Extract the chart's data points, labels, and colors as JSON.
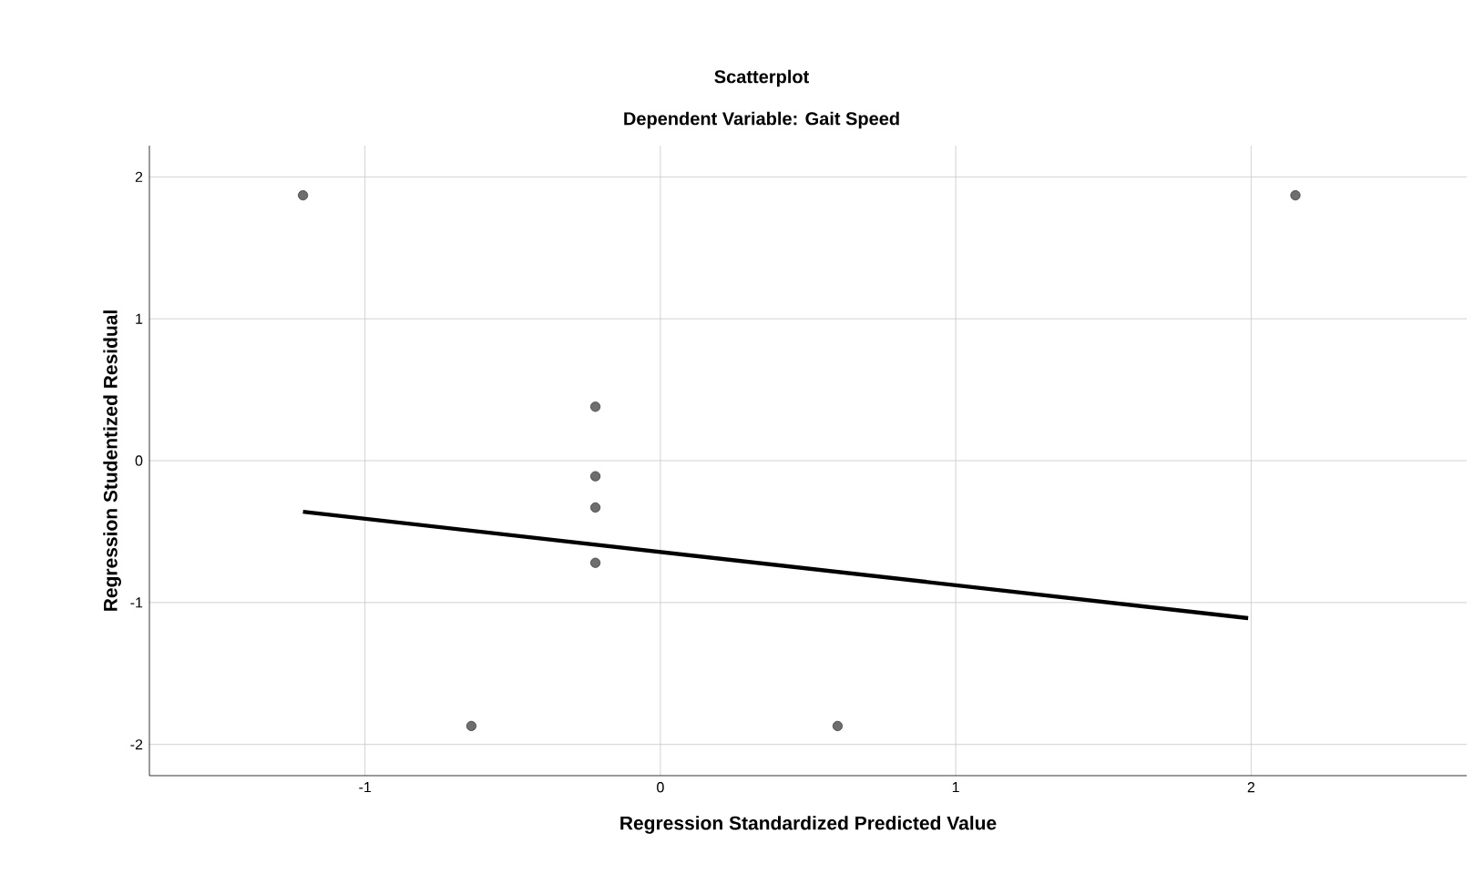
{
  "chart_data": {
    "type": "scatter",
    "title": "Scatterplot",
    "subtitle": "Dependent Variable: Gait Speed",
    "xlabel": "Regression Standardized Predicted Value",
    "ylabel": "Regression Studentized Residual",
    "xlim": [
      -1.73,
      2.73
    ],
    "ylim": [
      -2.22,
      2.22
    ],
    "xticks": [
      -1,
      0,
      1,
      2
    ],
    "yticks": [
      -2,
      -1,
      0,
      1,
      2
    ],
    "grid": true,
    "marker": "circle",
    "series": [
      {
        "type": "scatter",
        "color": "#6e6e6e",
        "x": [
          -1.21,
          2.15,
          -0.22,
          -0.22,
          -0.22,
          -0.22,
          -0.64,
          0.6
        ],
        "values": [
          1.87,
          1.87,
          0.38,
          -0.11,
          -0.33,
          -0.72,
          -1.87,
          -1.87
        ]
      },
      {
        "type": "line",
        "color": "#000000",
        "marker": "none",
        "line_style": "solid",
        "x": [
          -1.21,
          1.99
        ],
        "values": [
          -0.36,
          -1.11
        ]
      }
    ]
  }
}
